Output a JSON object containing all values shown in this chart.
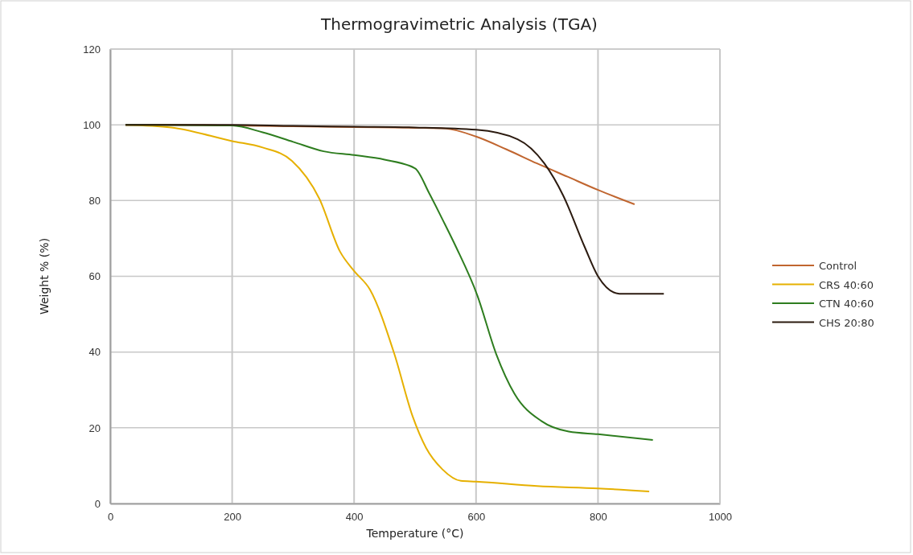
{
  "chart_data": {
    "type": "line",
    "title": "Thermogravimetric Analysis (TGA)",
    "xlabel": "Temperature (°C)",
    "ylabel": "Weight % (%)",
    "xlim": [
      0,
      1000
    ],
    "xticks": [
      0,
      200,
      400,
      600,
      800,
      1000
    ],
    "ylim": [
      0,
      120
    ],
    "yticks": [
      0,
      20,
      40,
      60,
      80,
      100,
      120
    ],
    "grid": true,
    "legend": "right",
    "marker": "none",
    "line_style": "solid",
    "series": [
      {
        "name": "Control",
        "color": "#c0652f",
        "x": [
          25,
          100,
          200,
          300,
          400,
          500,
          550,
          600,
          650,
          700,
          750,
          800,
          860
        ],
        "values": [
          100,
          100,
          99.8,
          99.6,
          99.4,
          99.2,
          99,
          96.9,
          93.5,
          89.8,
          86.3,
          82.8,
          79
        ]
      },
      {
        "name": "CRS 40:60",
        "color": "#e6b000",
        "x": [
          25,
          100,
          200,
          250,
          298,
          343,
          377,
          400,
          426,
          466,
          496,
          518,
          545,
          575,
          600,
          700,
          800,
          884
        ],
        "values": [
          100,
          99.3,
          95.7,
          94,
          90.5,
          80.5,
          66.5,
          61.4,
          56.5,
          39.5,
          23,
          14.7,
          9,
          6,
          5.8,
          4.6,
          4,
          3.2
        ]
      },
      {
        "name": "CTN 40:60",
        "color": "#2e7d1f",
        "x": [
          25,
          200,
          250,
          300,
          350,
          400,
          450,
          500,
          523,
          545,
          567,
          602,
          633,
          663,
          707,
          752,
          800,
          890
        ],
        "values": [
          100,
          99.8,
          98,
          95.5,
          93,
          92,
          90.8,
          88.5,
          82,
          75,
          67.8,
          55,
          39.5,
          29,
          21.8,
          19,
          18.3,
          16.8
        ]
      },
      {
        "name": "CHS 20:80",
        "color": "#2b1a0f",
        "x": [
          25,
          200,
          300,
          400,
          500,
          600,
          668,
          712,
          743,
          778,
          800,
          835,
          908
        ],
        "values": [
          100,
          100,
          99.7,
          99.5,
          99.3,
          98.7,
          96.2,
          89.8,
          81.3,
          67.8,
          60,
          55.4,
          55.4
        ]
      }
    ]
  }
}
